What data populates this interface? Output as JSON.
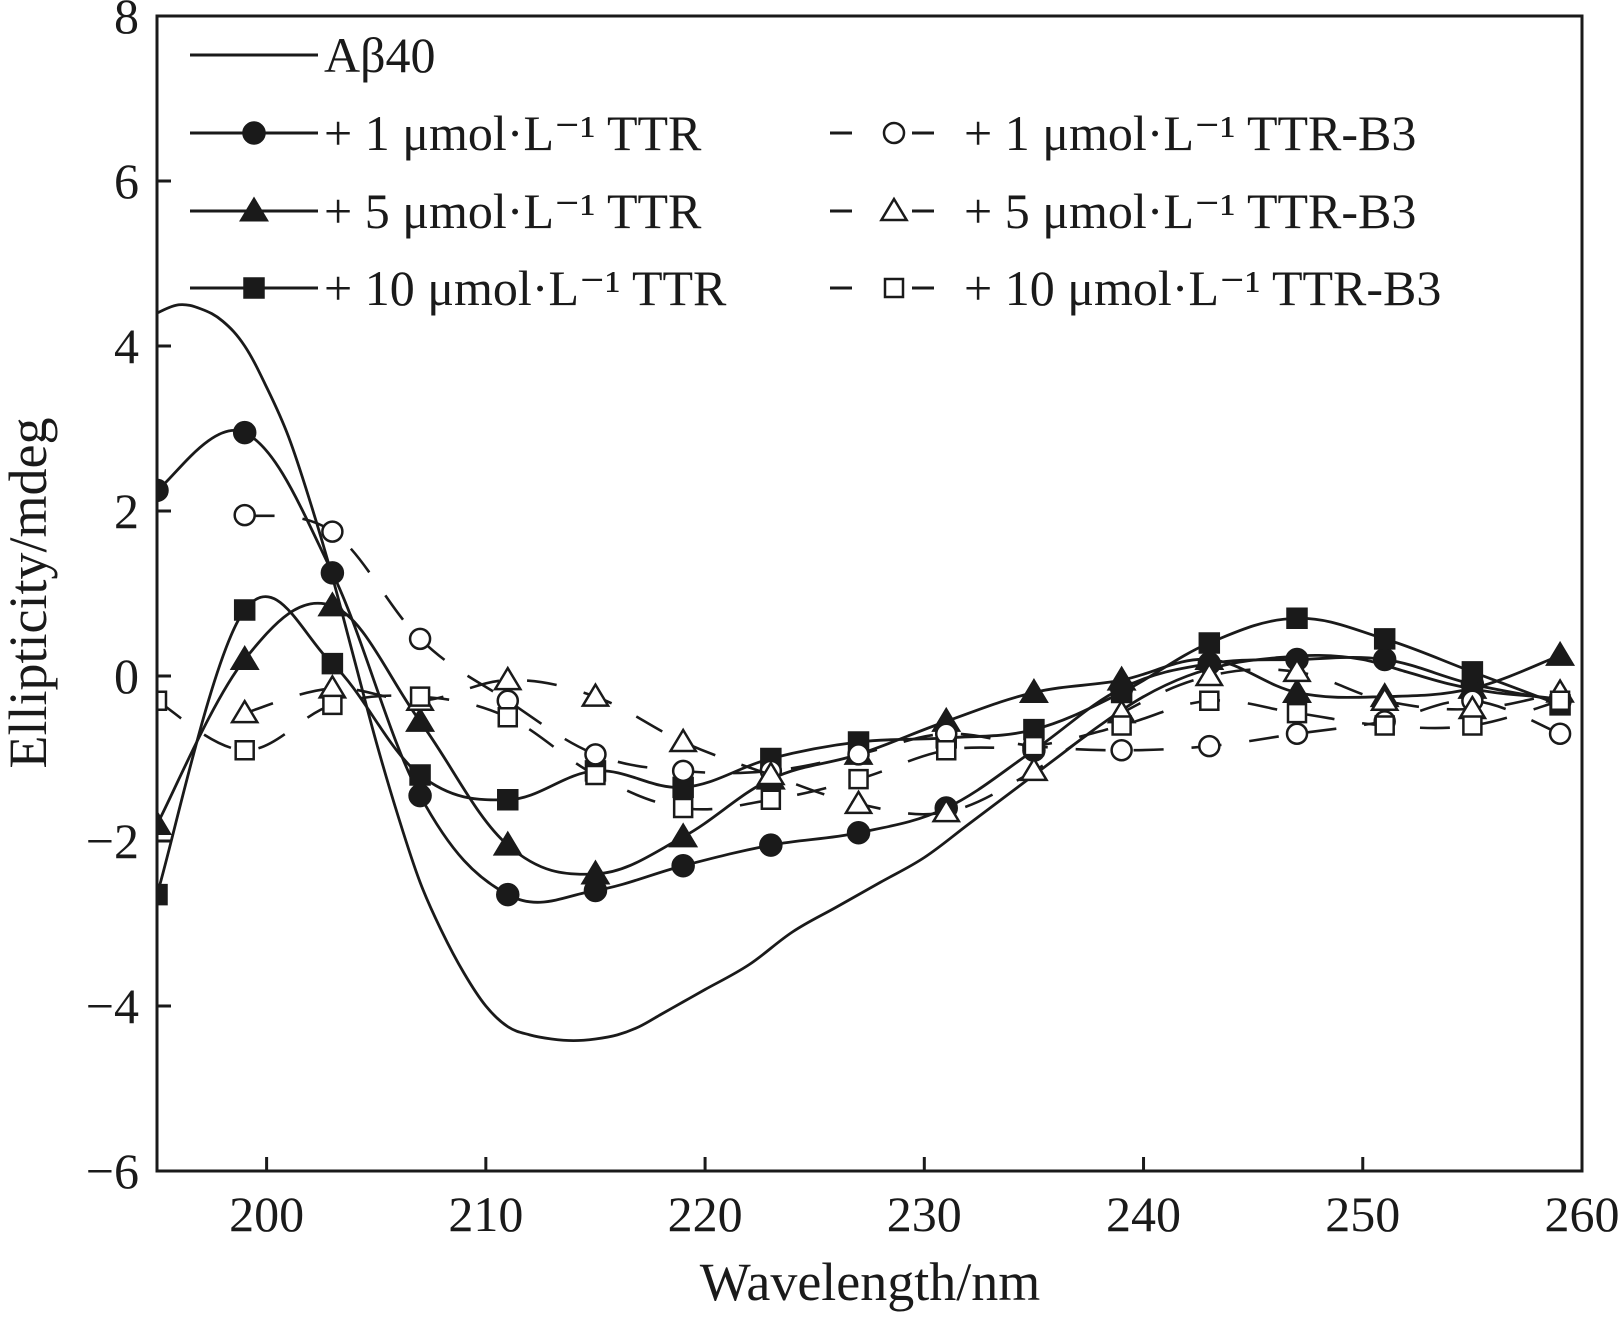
{
  "chart_data": {
    "type": "line",
    "title": "",
    "xlabel": "Wavelength/nm",
    "ylabel": "Ellipticity/mdeg",
    "xlim": [
      195,
      260
    ],
    "ylim": [
      -6,
      8
    ],
    "xticks": [
      200,
      210,
      220,
      230,
      240,
      250,
      260
    ],
    "yticks": [
      -6,
      -4,
      -2,
      0,
      2,
      4,
      6,
      8
    ],
    "x_tick_labels": [
      "200",
      "210",
      "220",
      "230",
      "240",
      "250",
      "260"
    ],
    "y_tick_labels": [
      "−6",
      "−4",
      "−2",
      "0",
      "2",
      "4",
      "6",
      "8"
    ],
    "grid": false,
    "legend_position": "top",
    "series": [
      {
        "name": "Aβ40",
        "label": "Aβ40",
        "line_style": "solid",
        "marker": "none",
        "x": [
          195,
          196,
          197,
          198,
          199,
          200,
          201,
          202,
          203,
          204,
          205,
          206,
          207,
          208,
          209,
          210,
          211,
          212,
          213,
          214,
          215,
          216,
          217,
          218,
          219,
          220,
          222,
          224,
          226,
          228,
          230,
          232,
          234,
          236,
          238,
          240,
          242,
          244,
          246,
          248,
          250,
          252,
          254,
          256,
          258,
          259
        ],
        "values": [
          4.4,
          4.5,
          4.45,
          4.3,
          4.0,
          3.5,
          2.9,
          2.1,
          1.2,
          0.2,
          -0.8,
          -1.7,
          -2.5,
          -3.1,
          -3.6,
          -4.0,
          -4.25,
          -4.35,
          -4.4,
          -4.42,
          -4.4,
          -4.35,
          -4.25,
          -4.1,
          -3.95,
          -3.8,
          -3.5,
          -3.1,
          -2.8,
          -2.5,
          -2.2,
          -1.8,
          -1.4,
          -1.0,
          -0.6,
          -0.25,
          0.0,
          0.15,
          0.22,
          0.25,
          0.2,
          0.05,
          -0.1,
          -0.2,
          -0.25,
          -0.28
        ]
      },
      {
        "name": "+ 1 μmol·L⁻¹ TTR",
        "label": "+ 1 μmol·L⁻¹ TTR",
        "line_style": "solid",
        "marker": "filled-circle",
        "x": [
          195,
          199,
          203,
          207,
          211,
          215,
          219,
          223,
          227,
          231,
          235,
          239,
          243,
          247,
          251,
          255,
          259
        ],
        "values": [
          2.25,
          2.95,
          1.25,
          -1.45,
          -2.65,
          -2.6,
          -2.3,
          -2.05,
          -1.9,
          -1.6,
          -0.9,
          -0.15,
          0.15,
          0.2,
          0.2,
          -0.1,
          -0.3
        ]
      },
      {
        "name": "+ 5 μmol·L⁻¹ TTR",
        "label": "+ 5 μmol·L⁻¹ TTR",
        "line_style": "solid",
        "marker": "filled-triangle",
        "x": [
          195,
          199,
          203,
          207,
          211,
          215,
          219,
          223,
          227,
          231,
          235,
          239,
          243,
          247,
          251,
          255,
          259
        ],
        "values": [
          -1.8,
          0.2,
          0.85,
          -0.55,
          -2.05,
          -2.4,
          -1.95,
          -1.25,
          -0.95,
          -0.55,
          -0.2,
          -0.05,
          0.2,
          -0.2,
          -0.25,
          -0.15,
          0.25
        ]
      },
      {
        "name": "+ 10 μmol·L⁻¹ TTR",
        "label": "+ 10 μmol·L⁻¹ TTR",
        "line_style": "solid",
        "marker": "filled-square",
        "x": [
          195,
          199,
          203,
          207,
          211,
          215,
          219,
          223,
          227,
          231,
          235,
          239,
          243,
          247,
          251,
          255,
          259
        ],
        "values": [
          -2.65,
          0.8,
          0.15,
          -1.2,
          -1.5,
          -1.15,
          -1.35,
          -1.0,
          -0.8,
          -0.75,
          -0.65,
          -0.2,
          0.4,
          0.7,
          0.45,
          0.05,
          -0.35
        ]
      },
      {
        "name": "+ 1 μmol·L⁻¹ TTR-B3",
        "label": "+ 1 μmol·L⁻¹ TTR-B3",
        "line_style": "dashed",
        "marker": "open-circle",
        "x": [
          199,
          203,
          207,
          211,
          215,
          219,
          223,
          227,
          231,
          235,
          239,
          243,
          247,
          251,
          255,
          259
        ],
        "values": [
          1.95,
          1.75,
          0.45,
          -0.3,
          -0.95,
          -1.15,
          -1.15,
          -0.95,
          -0.7,
          -0.85,
          -0.9,
          -0.85,
          -0.7,
          -0.55,
          -0.3,
          -0.7
        ]
      },
      {
        "name": "+ 5 μmol·L⁻¹ TTR-B3",
        "label": "+ 5 μmol·L⁻¹ TTR-B3",
        "line_style": "dashed",
        "marker": "open-triangle",
        "x": [
          199,
          203,
          207,
          211,
          215,
          219,
          223,
          227,
          231,
          235,
          239,
          243,
          247,
          251,
          255,
          259
        ],
        "values": [
          -0.45,
          -0.15,
          -0.3,
          -0.05,
          -0.25,
          -0.8,
          -1.2,
          -1.55,
          -1.65,
          -1.15,
          -0.45,
          0.0,
          0.05,
          -0.3,
          -0.4,
          -0.2
        ]
      },
      {
        "name": "+ 10 μmol·L⁻¹ TTR-B3",
        "label": "+ 10 μmol·L⁻¹ TTR-B3",
        "line_style": "dashed",
        "marker": "open-square",
        "x": [
          195,
          199,
          203,
          207,
          211,
          215,
          219,
          223,
          227,
          231,
          235,
          239,
          243,
          247,
          251,
          255,
          259
        ],
        "values": [
          -0.3,
          -0.9,
          -0.35,
          -0.25,
          -0.5,
          -1.2,
          -1.6,
          -1.5,
          -1.25,
          -0.9,
          -0.85,
          -0.6,
          -0.3,
          -0.45,
          -0.6,
          -0.6,
          -0.3
        ]
      }
    ]
  }
}
